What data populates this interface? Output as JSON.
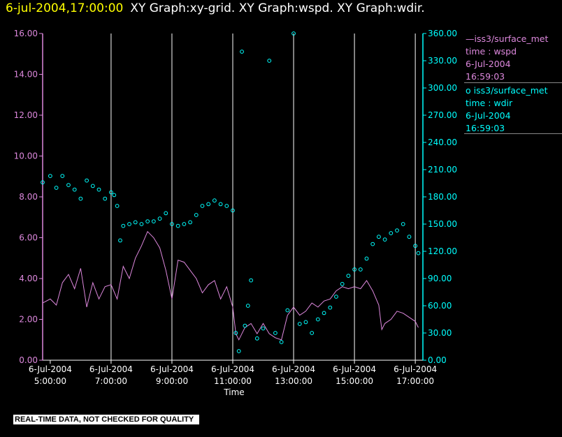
{
  "header": {
    "time": "6-jul-2004,17:00:00",
    "title": "XY Graph:xy-grid.  XY Graph:wspd.  XY Graph:wdir."
  },
  "footer_note": "REAL-TIME DATA, NOT CHECKED FOR QUALITY",
  "legend": [
    {
      "marker": "line",
      "name": "iss3/surface_met",
      "lines": [
        "time : wspd",
        "6-Jul-2004",
        "16:59:03"
      ],
      "color": "#dd88dd"
    },
    {
      "marker": "o",
      "name": "iss3/surface_met",
      "lines": [
        "time : wdir",
        "6-Jul-2004",
        "16:59:03"
      ],
      "color": "#00ffff"
    }
  ],
  "chart_data": {
    "type": "line",
    "xlabel": "Time",
    "x_range_hours": [
      4.75,
      17.25
    ],
    "x_ticks": [
      {
        "h": 5,
        "date": "6-Jul-2004",
        "time": "5:00:00"
      },
      {
        "h": 7,
        "date": "6-Jul-2004",
        "time": "7:00:00"
      },
      {
        "h": 9,
        "date": "6-Jul-2004",
        "time": "9:00:00"
      },
      {
        "h": 11,
        "date": "6-Jul-2004",
        "time": "11:00:00"
      },
      {
        "h": 13,
        "date": "6-Jul-2004",
        "time": "13:00:00"
      },
      {
        "h": 15,
        "date": "6-Jul-2004",
        "time": "15:00:00"
      },
      {
        "h": 17,
        "date": "6-Jul-2004",
        "time": "17:00:00"
      }
    ],
    "vertical_grid_hours": [
      7,
      9,
      11,
      13,
      15,
      17
    ],
    "y_left": {
      "range": [
        0,
        16
      ],
      "ticks": [
        "0.00",
        "2.00",
        "4.00",
        "6.00",
        "8.00",
        "10.00",
        "12.00",
        "14.00",
        "16.00"
      ],
      "color": "#dd88dd"
    },
    "y_right": {
      "range": [
        0,
        360
      ],
      "ticks": [
        "0.00",
        "30.00",
        "60.00",
        "90.00",
        "120.00",
        "150.00",
        "180.00",
        "210.00",
        "240.00",
        "270.00",
        "300.00",
        "330.00",
        "360.00"
      ],
      "color": "#00ffff"
    },
    "series": [
      {
        "name": "wspd",
        "axis": "left",
        "style": "line",
        "color": "#dd88dd",
        "points": [
          [
            4.75,
            2.8
          ],
          [
            5.0,
            3.0
          ],
          [
            5.2,
            2.7
          ],
          [
            5.4,
            3.8
          ],
          [
            5.6,
            4.2
          ],
          [
            5.8,
            3.5
          ],
          [
            6.0,
            4.5
          ],
          [
            6.2,
            2.6
          ],
          [
            6.4,
            3.8
          ],
          [
            6.6,
            3.0
          ],
          [
            6.8,
            3.6
          ],
          [
            7.0,
            3.7
          ],
          [
            7.2,
            3.0
          ],
          [
            7.4,
            4.6
          ],
          [
            7.6,
            4.0
          ],
          [
            7.8,
            5.0
          ],
          [
            8.0,
            5.6
          ],
          [
            8.2,
            6.3
          ],
          [
            8.4,
            6.0
          ],
          [
            8.6,
            5.5
          ],
          [
            8.8,
            4.4
          ],
          [
            9.0,
            3.0
          ],
          [
            9.2,
            4.9
          ],
          [
            9.4,
            4.8
          ],
          [
            9.6,
            4.4
          ],
          [
            9.8,
            4.0
          ],
          [
            10.0,
            3.3
          ],
          [
            10.2,
            3.7
          ],
          [
            10.4,
            3.9
          ],
          [
            10.6,
            3.0
          ],
          [
            10.8,
            3.6
          ],
          [
            11.0,
            2.6
          ],
          [
            11.1,
            1.3
          ],
          [
            11.2,
            1.0
          ],
          [
            11.4,
            1.6
          ],
          [
            11.6,
            1.8
          ],
          [
            11.8,
            1.3
          ],
          [
            12.0,
            1.8
          ],
          [
            12.2,
            1.3
          ],
          [
            12.4,
            1.1
          ],
          [
            12.6,
            1.0
          ],
          [
            12.8,
            2.2
          ],
          [
            13.0,
            2.6
          ],
          [
            13.2,
            2.2
          ],
          [
            13.4,
            2.4
          ],
          [
            13.6,
            2.8
          ],
          [
            13.8,
            2.6
          ],
          [
            14.0,
            2.9
          ],
          [
            14.2,
            3.0
          ],
          [
            14.4,
            3.4
          ],
          [
            14.6,
            3.6
          ],
          [
            14.8,
            3.5
          ],
          [
            15.0,
            3.6
          ],
          [
            15.2,
            3.5
          ],
          [
            15.4,
            3.9
          ],
          [
            15.6,
            3.4
          ],
          [
            15.8,
            2.7
          ],
          [
            15.9,
            1.5
          ],
          [
            16.0,
            1.8
          ],
          [
            16.2,
            2.0
          ],
          [
            16.4,
            2.4
          ],
          [
            16.6,
            2.3
          ],
          [
            16.8,
            2.1
          ],
          [
            17.0,
            1.9
          ],
          [
            17.1,
            1.6
          ]
        ]
      },
      {
        "name": "wdir",
        "axis": "right",
        "style": "markers",
        "color": "#00ffff",
        "points": [
          [
            4.75,
            196
          ],
          [
            5.0,
            203
          ],
          [
            5.2,
            190
          ],
          [
            5.4,
            203
          ],
          [
            5.6,
            193
          ],
          [
            5.8,
            188
          ],
          [
            6.0,
            178
          ],
          [
            6.2,
            198
          ],
          [
            6.4,
            192
          ],
          [
            6.6,
            188
          ],
          [
            6.8,
            178
          ],
          [
            7.0,
            185
          ],
          [
            7.1,
            182
          ],
          [
            7.2,
            170
          ],
          [
            7.3,
            132
          ],
          [
            7.4,
            148
          ],
          [
            7.6,
            150
          ],
          [
            7.8,
            152
          ],
          [
            8.0,
            150
          ],
          [
            8.2,
            153
          ],
          [
            8.4,
            153
          ],
          [
            8.6,
            156
          ],
          [
            8.8,
            162
          ],
          [
            9.0,
            150
          ],
          [
            9.2,
            148
          ],
          [
            9.4,
            150
          ],
          [
            9.6,
            152
          ],
          [
            9.8,
            160
          ],
          [
            10.0,
            170
          ],
          [
            10.2,
            172
          ],
          [
            10.4,
            176
          ],
          [
            10.6,
            172
          ],
          [
            10.8,
            170
          ],
          [
            11.0,
            165
          ],
          [
            11.1,
            30
          ],
          [
            11.2,
            10
          ],
          [
            11.3,
            340
          ],
          [
            11.4,
            38
          ],
          [
            11.5,
            60
          ],
          [
            11.6,
            88
          ],
          [
            11.8,
            24
          ],
          [
            12.0,
            35
          ],
          [
            12.2,
            330
          ],
          [
            12.4,
            30
          ],
          [
            12.6,
            20
          ],
          [
            12.8,
            55
          ],
          [
            13.0,
            360
          ],
          [
            13.2,
            40
          ],
          [
            13.4,
            42
          ],
          [
            13.6,
            30
          ],
          [
            13.8,
            45
          ],
          [
            14.0,
            52
          ],
          [
            14.2,
            58
          ],
          [
            14.4,
            70
          ],
          [
            14.6,
            84
          ],
          [
            14.8,
            93
          ],
          [
            15.0,
            100
          ],
          [
            15.2,
            100
          ],
          [
            15.4,
            112
          ],
          [
            15.6,
            128
          ],
          [
            15.8,
            136
          ],
          [
            16.0,
            133
          ],
          [
            16.2,
            140
          ],
          [
            16.4,
            143
          ],
          [
            16.6,
            150
          ],
          [
            16.8,
            136
          ],
          [
            17.0,
            126
          ],
          [
            17.1,
            118
          ]
        ]
      }
    ]
  }
}
